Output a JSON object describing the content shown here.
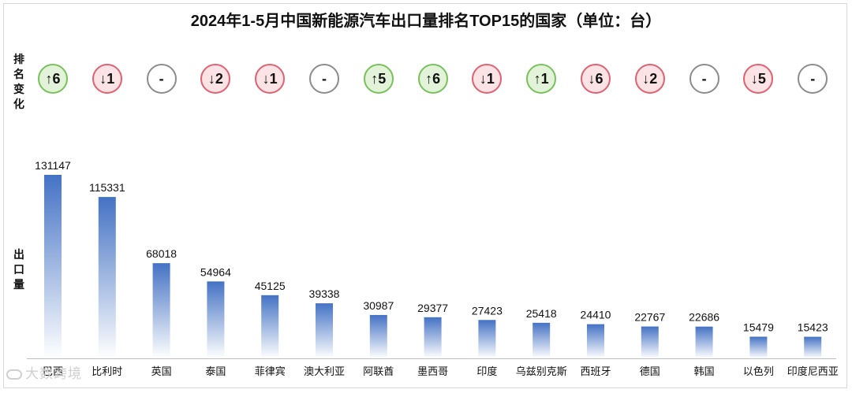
{
  "chart_data": {
    "type": "bar",
    "title": "2024年1-5月中国新能源汽车出口量排名TOP15的国家（单位：台）",
    "rank_change_label": "排名变化",
    "ylabel": "出口量",
    "categories": [
      "巴西",
      "比利时",
      "英国",
      "泰国",
      "菲律宾",
      "澳大利亚",
      "阿联酋",
      "墨西哥",
      "印度",
      "乌兹别克斯",
      "西班牙",
      "德国",
      "韩国",
      "以色列",
      "印度尼西亚"
    ],
    "values": [
      131147,
      115331,
      68018,
      54964,
      45125,
      39338,
      30987,
      29377,
      27423,
      25418,
      24410,
      22767,
      22686,
      15479,
      15423
    ],
    "rank_changes": [
      {
        "dir": "up",
        "text": "↑6"
      },
      {
        "dir": "down",
        "text": "↓1"
      },
      {
        "dir": "same",
        "text": "-"
      },
      {
        "dir": "down",
        "text": "↓2"
      },
      {
        "dir": "down",
        "text": "↓1"
      },
      {
        "dir": "same",
        "text": "-"
      },
      {
        "dir": "up",
        "text": "↑5"
      },
      {
        "dir": "up",
        "text": "↑6"
      },
      {
        "dir": "down",
        "text": "↓1"
      },
      {
        "dir": "up",
        "text": "↑1"
      },
      {
        "dir": "down",
        "text": "↓6"
      },
      {
        "dir": "down",
        "text": "↓2"
      },
      {
        "dir": "same",
        "text": "-"
      },
      {
        "dir": "down",
        "text": "↓5"
      },
      {
        "dir": "same",
        "text": "-"
      }
    ],
    "ylim": [
      0,
      131147
    ],
    "grid": false,
    "colors": {
      "bar_top": "#4472c4",
      "bar_bottom": "#ffffff",
      "up": "#78c25a",
      "down": "#e06172",
      "same": "#8c8c8c"
    }
  },
  "watermark": "大数跨境"
}
